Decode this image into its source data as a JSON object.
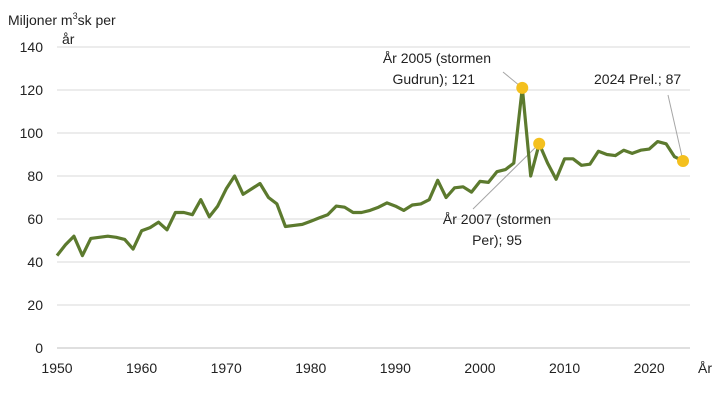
{
  "chart_data": {
    "type": "line",
    "ylabel_prefix": "Miljoner m",
    "ylabel_sup": "3",
    "ylabel_suffix": "sk per",
    "ylabel_line2": "år",
    "xlabel": "År",
    "xlim": [
      1950,
      2024
    ],
    "ylim": [
      0,
      140
    ],
    "y_ticks": [
      0,
      20,
      40,
      60,
      80,
      100,
      120,
      140
    ],
    "x_ticks": [
      1950,
      1960,
      1970,
      1980,
      1990,
      2000,
      2010,
      2020
    ],
    "grid": "horizontal",
    "colors": {
      "line": "#5c7a2e",
      "highlight": "#f4c01e",
      "grid": "#d9d9d9",
      "leader": "#a6a6a6"
    },
    "series": [
      {
        "x": [
          1950,
          1951,
          1952,
          1953,
          1954,
          1955,
          1956,
          1957,
          1958,
          1959,
          1960,
          1961,
          1962,
          1963,
          1964,
          1965,
          1966,
          1967,
          1968,
          1969,
          1970,
          1971,
          1972,
          1973,
          1974,
          1975,
          1976,
          1977,
          1978,
          1979,
          1980,
          1981,
          1982,
          1983,
          1984,
          1985,
          1986,
          1987,
          1988,
          1989,
          1990,
          1991,
          1992,
          1993,
          1994,
          1995,
          1996,
          1997,
          1998,
          1999,
          2000,
          2001,
          2002,
          2003,
          2004,
          2005,
          2006,
          2007,
          2008,
          2009,
          2010,
          2011,
          2012,
          2013,
          2014,
          2015,
          2016,
          2017,
          2018,
          2019,
          2020,
          2021,
          2022,
          2023,
          2024
        ],
        "y": [
          43,
          48,
          52,
          43,
          51,
          51.5,
          52,
          51.5,
          50.5,
          46,
          54.5,
          56,
          58.5,
          55,
          63,
          63,
          62,
          69,
          61,
          66,
          74,
          80,
          71.5,
          74,
          76.5,
          70,
          67,
          56.5,
          57,
          57.5,
          59,
          60.5,
          62,
          66,
          65.5,
          63,
          63,
          64,
          65.5,
          67.5,
          66,
          64,
          66.5,
          67,
          69,
          78,
          70,
          74.5,
          75,
          72.5,
          77.5,
          77,
          82,
          83,
          86,
          121,
          80,
          95,
          86,
          78.5,
          88,
          88,
          85,
          85.5,
          91.5,
          90,
          89.5,
          92,
          90.5,
          92,
          92.5,
          96,
          95,
          89,
          87
        ]
      }
    ],
    "annotations": [
      {
        "year": 2005,
        "value": 121,
        "line1": "År 2005 (stormen",
        "line2": "Gudrun); 121"
      },
      {
        "year": 2007,
        "value": 95,
        "line1": "År 2007 (stormen",
        "line2": "Per); 95"
      },
      {
        "year": 2024,
        "value": 87,
        "line1": "2024 Prel.; 87",
        "line2": ""
      }
    ]
  }
}
